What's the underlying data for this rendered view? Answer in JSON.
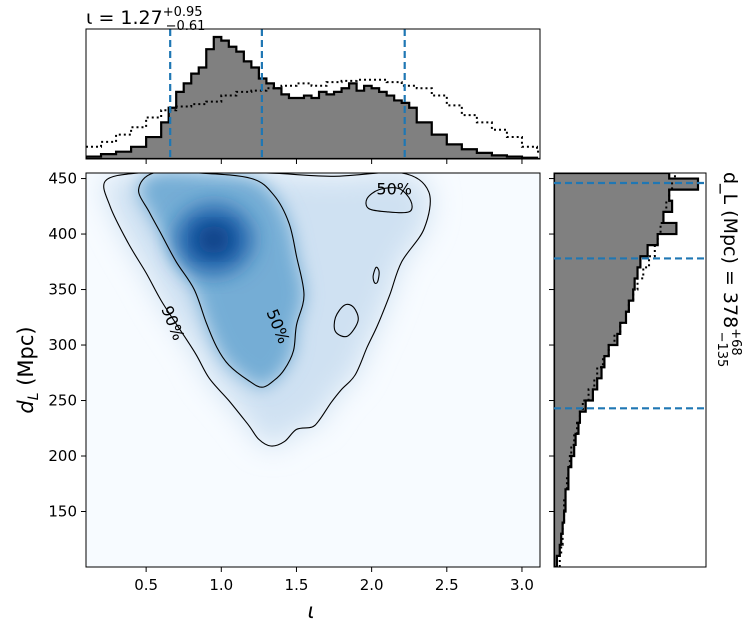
{
  "chart_data": [
    {
      "type": "heatmap",
      "xlabel": "ι",
      "ylabel": "d_L (Mpc)",
      "xlim": [
        0.1,
        3.12
      ],
      "ylim": [
        100,
        455
      ],
      "xticks": [
        0.5,
        1.0,
        1.5,
        2.0,
        2.5,
        3.0
      ],
      "xtick_labels": [
        "0.5",
        "1.0",
        "1.5",
        "2.0",
        "2.5",
        "3.0"
      ],
      "yticks": [
        150,
        200,
        250,
        300,
        350,
        400,
        450
      ],
      "ytick_labels": [
        "150",
        "200",
        "250",
        "300",
        "350",
        "400",
        "450"
      ],
      "grid": false,
      "colormap": "Blues",
      "density_peak": [
        0.95,
        395
      ],
      "contours": [
        {
          "label": "90%",
          "label_at": [
            0.68,
            320
          ],
          "points": [
            [
              0.23,
              448
            ],
            [
              0.45,
              455
            ],
            [
              0.8,
              455
            ],
            [
              1.3,
              455
            ],
            [
              1.75,
              452
            ],
            [
              2.2,
              455
            ],
            [
              2.38,
              438
            ],
            [
              2.35,
              405
            ],
            [
              2.2,
              375
            ],
            [
              2.12,
              345
            ],
            [
              2.04,
              318
            ],
            [
              1.97,
              298
            ],
            [
              1.89,
              273
            ],
            [
              1.8,
              260
            ],
            [
              1.73,
              248
            ],
            [
              1.65,
              232
            ],
            [
              1.6,
              226
            ],
            [
              1.5,
              224
            ],
            [
              1.42,
              213
            ],
            [
              1.33,
              209
            ],
            [
              1.25,
              215
            ],
            [
              1.18,
              228
            ],
            [
              1.05,
              250
            ],
            [
              0.92,
              270
            ],
            [
              0.83,
              292
            ],
            [
              0.72,
              315
            ],
            [
              0.6,
              340
            ],
            [
              0.5,
              365
            ],
            [
              0.38,
              392
            ],
            [
              0.26,
              425
            ]
          ]
        },
        {
          "label": "50%",
          "label_at": [
            1.38,
            317
          ],
          "points": [
            [
              0.45,
              440
            ],
            [
              0.55,
              455
            ],
            [
              0.85,
              455
            ],
            [
              1.2,
              450
            ],
            [
              1.35,
              435
            ],
            [
              1.45,
              410
            ],
            [
              1.5,
              380
            ],
            [
              1.55,
              345
            ],
            [
              1.5,
              318
            ],
            [
              1.48,
              295
            ],
            [
              1.42,
              278
            ],
            [
              1.35,
              268
            ],
            [
              1.27,
              262
            ],
            [
              1.18,
              268
            ],
            [
              1.05,
              282
            ],
            [
              0.97,
              298
            ],
            [
              0.9,
              320
            ],
            [
              0.82,
              350
            ],
            [
              0.7,
              375
            ],
            [
              0.6,
              400
            ],
            [
              0.52,
              420
            ]
          ]
        },
        {
          "label": "50%",
          "label_at": [
            2.15,
            441
          ],
          "points": [
            [
              1.97,
              432
            ],
            [
              2.05,
              440
            ],
            [
              2.18,
              441
            ],
            [
              2.26,
              430
            ],
            [
              2.25,
              420
            ],
            [
              2.1,
              420
            ],
            [
              1.98,
              423
            ]
          ]
        },
        {
          "label": "",
          "points": [
            [
              1.76,
              325
            ],
            [
              1.82,
              336
            ],
            [
              1.88,
              334
            ],
            [
              1.91,
              322
            ],
            [
              1.84,
              308
            ],
            [
              1.76,
              312
            ]
          ]
        },
        {
          "label": "",
          "points": [
            [
              2.01,
              362
            ],
            [
              2.03,
              370
            ],
            [
              2.05,
              366
            ],
            [
              2.04,
              357
            ],
            [
              2.02,
              356
            ]
          ]
        }
      ]
    },
    {
      "type": "area",
      "title": "ι = 1.27",
      "title_sup": "+0.95",
      "title_sub": "−0.61",
      "quantile_lines": [
        0.66,
        1.27,
        2.22
      ],
      "xlim": [
        0.1,
        3.12
      ],
      "series": [
        {
          "style": "filled-step",
          "x": [
            0.1,
            0.2,
            0.3,
            0.4,
            0.5,
            0.6,
            0.65,
            0.7,
            0.75,
            0.8,
            0.85,
            0.9,
            0.95,
            1.0,
            1.05,
            1.1,
            1.15,
            1.2,
            1.25,
            1.3,
            1.35,
            1.4,
            1.45,
            1.5,
            1.55,
            1.6,
            1.65,
            1.7,
            1.75,
            1.8,
            1.85,
            1.9,
            1.95,
            2.0,
            2.05,
            2.1,
            2.15,
            2.2,
            2.25,
            2.3,
            2.4,
            2.5,
            2.6,
            2.7,
            2.8,
            2.9,
            3.0,
            3.1
          ],
          "values": [
            0.02,
            0.04,
            0.06,
            0.1,
            0.18,
            0.3,
            0.42,
            0.55,
            0.62,
            0.7,
            0.75,
            0.9,
            1.0,
            0.97,
            0.92,
            0.88,
            0.8,
            0.75,
            0.66,
            0.62,
            0.58,
            0.53,
            0.5,
            0.5,
            0.52,
            0.5,
            0.55,
            0.53,
            0.55,
            0.58,
            0.62,
            0.56,
            0.6,
            0.58,
            0.55,
            0.52,
            0.48,
            0.46,
            0.42,
            0.3,
            0.2,
            0.12,
            0.08,
            0.05,
            0.03,
            0.02,
            0.01,
            0.0
          ]
        },
        {
          "style": "dotted-step",
          "x": [
            0.1,
            0.2,
            0.3,
            0.4,
            0.5,
            0.6,
            0.7,
            0.8,
            0.9,
            1.0,
            1.1,
            1.2,
            1.3,
            1.4,
            1.5,
            1.6,
            1.7,
            1.8,
            1.9,
            2.0,
            2.1,
            2.2,
            2.3,
            2.4,
            2.5,
            2.6,
            2.7,
            2.8,
            2.9,
            3.0,
            3.1
          ],
          "values": [
            0.1,
            0.14,
            0.2,
            0.26,
            0.34,
            0.4,
            0.43,
            0.45,
            0.47,
            0.52,
            0.55,
            0.56,
            0.58,
            0.6,
            0.62,
            0.6,
            0.63,
            0.64,
            0.65,
            0.65,
            0.63,
            0.6,
            0.58,
            0.52,
            0.44,
            0.36,
            0.3,
            0.24,
            0.18,
            0.1,
            0.06
          ]
        }
      ]
    },
    {
      "type": "area",
      "orientation": "horizontal",
      "title": "d_L (Mpc) = 378",
      "title_sup": "+68",
      "title_sub": "−135",
      "quantile_lines": [
        243,
        378,
        446
      ],
      "ylim": [
        100,
        455
      ],
      "series": [
        {
          "style": "filled-step",
          "y": [
            100,
            110,
            120,
            130,
            140,
            150,
            160,
            170,
            180,
            190,
            200,
            210,
            220,
            230,
            240,
            250,
            260,
            270,
            280,
            290,
            300,
            310,
            320,
            330,
            340,
            350,
            360,
            370,
            380,
            390,
            400,
            410,
            420,
            430,
            440,
            450
          ],
          "values": [
            0.02,
            0.04,
            0.05,
            0.06,
            0.07,
            0.08,
            0.08,
            0.1,
            0.1,
            0.12,
            0.14,
            0.15,
            0.17,
            0.18,
            0.22,
            0.27,
            0.3,
            0.33,
            0.35,
            0.38,
            0.44,
            0.46,
            0.5,
            0.52,
            0.55,
            0.56,
            0.58,
            0.6,
            0.65,
            0.72,
            0.85,
            0.76,
            0.82,
            0.8,
            1.0,
            0.8
          ]
        },
        {
          "style": "dotted-step",
          "y": [
            100,
            110,
            120,
            130,
            140,
            150,
            160,
            170,
            180,
            190,
            200,
            210,
            220,
            230,
            240,
            250,
            260,
            270,
            280,
            290,
            300,
            310,
            320,
            330,
            340,
            350,
            360,
            370,
            380,
            390,
            400,
            410,
            420,
            430,
            440,
            450
          ],
          "values": [
            0.04,
            0.05,
            0.06,
            0.06,
            0.07,
            0.07,
            0.08,
            0.09,
            0.1,
            0.11,
            0.12,
            0.14,
            0.16,
            0.18,
            0.2,
            0.24,
            0.28,
            0.3,
            0.34,
            0.38,
            0.42,
            0.46,
            0.5,
            0.52,
            0.55,
            0.58,
            0.62,
            0.66,
            0.7,
            0.72,
            0.74,
            0.76,
            0.78,
            0.8,
            0.82,
            0.84
          ]
        }
      ]
    }
  ]
}
